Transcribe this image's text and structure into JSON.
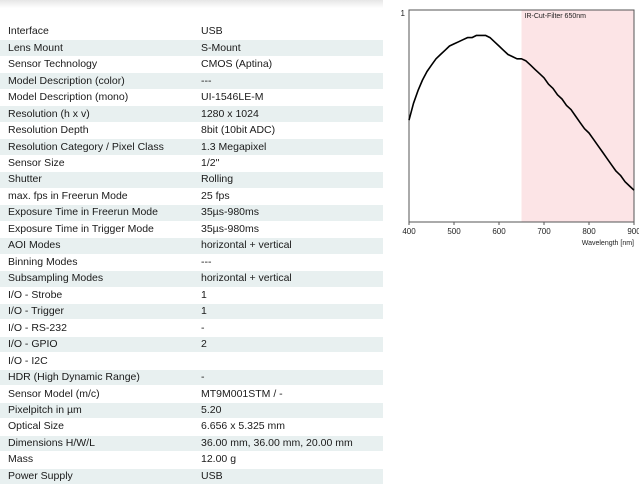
{
  "specs": [
    {
      "label": "Interface",
      "value": "USB"
    },
    {
      "label": "Lens Mount",
      "value": "S-Mount"
    },
    {
      "label": "Sensor Technology",
      "value": "CMOS (Aptina)"
    },
    {
      "label": "Model Description (color)",
      "value": "---"
    },
    {
      "label": "Model Description (mono)",
      "value": "UI-1546LE-M"
    },
    {
      "label": "Resolution (h x v)",
      "value": "1280 x 1024"
    },
    {
      "label": "Resolution Depth",
      "value": "8bit (10bit ADC)"
    },
    {
      "label": "Resolution Category / Pixel Class",
      "value": "1.3 Megapixel"
    },
    {
      "label": "Sensor Size",
      "value": "1/2\""
    },
    {
      "label": "Shutter",
      "value": "Rolling"
    },
    {
      "label": "max. fps in Freerun Mode",
      "value": "25 fps"
    },
    {
      "label": "Exposure Time in Freerun Mode",
      "value": "35µs-980ms"
    },
    {
      "label": "Exposure Time in Trigger Mode",
      "value": "35µs-980ms"
    },
    {
      "label": "AOI Modes",
      "value": "horizontal + vertical"
    },
    {
      "label": "Binning Modes",
      "value": "---"
    },
    {
      "label": "Subsampling Modes",
      "value": "horizontal + vertical"
    },
    {
      "label": "I/O - Strobe",
      "value": "1"
    },
    {
      "label": "I/O - Trigger",
      "value": "1"
    },
    {
      "label": "I/O - RS-232",
      "value": "-"
    },
    {
      "label": "I/O - GPIO",
      "value": "2"
    },
    {
      "label": "I/O - I2C",
      "value": ""
    },
    {
      "label": "HDR (High Dynamic Range)",
      "value": "-"
    },
    {
      "label": "Sensor Model (m/c)",
      "value": "MT9M001STM / -"
    },
    {
      "label": "Pixelpitch in µm",
      "value": "5.20"
    },
    {
      "label": "Optical Size",
      "value": "6.656 x 5.325 mm"
    },
    {
      "label": "Dimensions H/W/L",
      "value": "36.00 mm, 36.00 mm, 20.00 mm"
    },
    {
      "label": "Mass",
      "value": "12.00 g"
    },
    {
      "label": "Power Supply",
      "value": "USB"
    }
  ],
  "chart_data": {
    "type": "line",
    "xlabel": "Wavelength [nm]",
    "ylabel": "",
    "xlim": [
      400,
      900
    ],
    "ylim": [
      0,
      1
    ],
    "x_ticks": [
      400,
      500,
      600,
      700,
      800,
      900
    ],
    "y_tick_labels": [
      "1"
    ],
    "annotation": "IR-Cut-Filter 650nm",
    "shaded_region": {
      "from": 650,
      "to": 900,
      "color": "#fce4e6"
    },
    "line_color": "#000000",
    "series": [
      {
        "x": [
          400,
          410,
          420,
          430,
          440,
          450,
          460,
          470,
          480,
          490,
          500,
          510,
          520,
          530,
          540,
          550,
          560,
          570,
          580,
          590,
          600,
          610,
          620,
          630,
          640,
          650,
          660,
          670,
          680,
          690,
          700,
          710,
          720,
          730,
          740,
          750,
          760,
          770,
          780,
          790,
          800,
          810,
          820,
          830,
          840,
          850,
          860,
          870,
          880,
          890,
          900
        ],
        "y": [
          0.48,
          0.56,
          0.62,
          0.67,
          0.71,
          0.74,
          0.77,
          0.79,
          0.81,
          0.83,
          0.84,
          0.85,
          0.86,
          0.87,
          0.87,
          0.88,
          0.88,
          0.88,
          0.87,
          0.85,
          0.83,
          0.81,
          0.79,
          0.78,
          0.77,
          0.77,
          0.76,
          0.74,
          0.72,
          0.7,
          0.68,
          0.65,
          0.63,
          0.6,
          0.58,
          0.55,
          0.53,
          0.5,
          0.47,
          0.44,
          0.42,
          0.39,
          0.36,
          0.33,
          0.3,
          0.27,
          0.24,
          0.22,
          0.19,
          0.17,
          0.15
        ]
      }
    ]
  }
}
